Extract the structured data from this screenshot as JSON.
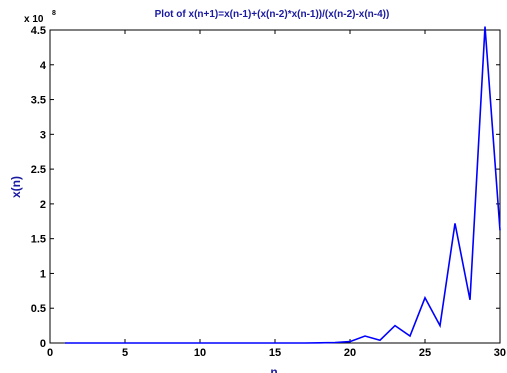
{
  "chart_data": {
    "type": "line",
    "title": "Plot of x(n+1)=x(n-1)+(x(n-2)*x(n-1))/(x(n-2)-x(n-4))",
    "xlabel": "n",
    "ylabel": "x(n)",
    "scale_multiplier_base": "x 10",
    "scale_multiplier_exp": "8",
    "xlim": [
      0,
      30
    ],
    "ylim": [
      0,
      4.5
    ],
    "x_ticks": [
      0,
      5,
      10,
      15,
      20,
      25,
      30
    ],
    "x_tick_labels": [
      "0",
      "5",
      "10",
      "15",
      "20",
      "25",
      "30"
    ],
    "y_ticks": [
      0,
      0.5,
      1,
      1.5,
      2,
      2.5,
      3,
      3.5,
      4,
      4.5
    ],
    "y_tick_labels": [
      "0",
      "0.5",
      "1",
      "1.5",
      "2",
      "2.5",
      "3",
      "3.5",
      "4",
      "4.5"
    ],
    "grid": false,
    "line_color": "#0000ff",
    "series": [
      {
        "x": [
          1,
          2,
          3,
          4,
          5,
          6,
          7,
          8,
          9,
          10,
          11,
          12,
          13,
          14,
          15,
          16,
          17,
          18,
          19,
          20,
          21,
          22,
          23,
          24,
          25,
          26,
          27,
          28,
          29,
          30
        ],
        "values": [
          0,
          0,
          0,
          0,
          0,
          0,
          0,
          0,
          0,
          0,
          0,
          0,
          0,
          0,
          0,
          0,
          0,
          0.003,
          0.007,
          0.02,
          0.1,
          0.04,
          0.25,
          0.1,
          0.65,
          0.25,
          1.72,
          0.62,
          4.55,
          1.62
        ]
      }
    ]
  }
}
